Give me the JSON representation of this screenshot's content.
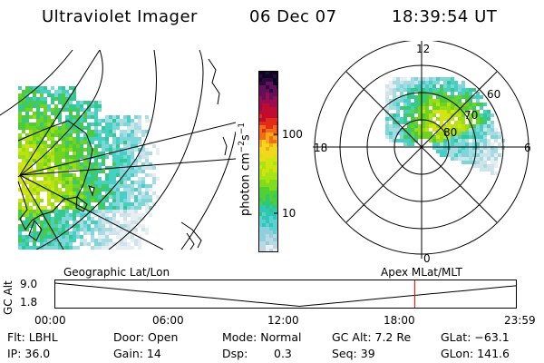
{
  "header": {
    "instrument": "Ultraviolet Imager",
    "date": "06 Dec 07",
    "time": "18:39:54 UT"
  },
  "colorbar": {
    "label_prefix": "photon cm",
    "label_exp1": "−2",
    "label_mid": "s",
    "label_exp2": "−1",
    "ticks": [
      "100",
      "10"
    ],
    "colors": [
      "#e8eef2",
      "#bcd8e0",
      "#8fd0dc",
      "#5ccfd0",
      "#2ec7b8",
      "#30c878",
      "#52d030",
      "#80dc1c",
      "#a8e414",
      "#d0e410",
      "#f0d81c",
      "#f8a818",
      "#f06c18",
      "#e02c18",
      "#c00c30",
      "#980c50",
      "#641058",
      "#2c0840",
      "#0c0420"
    ],
    "color_texture": "speckled-ramp"
  },
  "polar": {
    "hour_labels": [
      "12",
      "18",
      "6",
      "0"
    ],
    "lat_labels": [
      "60",
      "70",
      "80"
    ]
  },
  "timeline": {
    "axis_label": "GC Alt",
    "left_title": "Geographic Lat/Lon",
    "right_title": "Apex MLat/MLT",
    "ytick_top": "9.0",
    "ytick_bottom": "1.8",
    "xticks": [
      "00:00",
      "06:00",
      "12:00",
      "18:00",
      "23:59"
    ],
    "marker_fraction": 0.7805,
    "marker_color": "#e02020",
    "curve_color": "#000000"
  },
  "status": {
    "row1": {
      "flt": "Flt: LBHL",
      "door": "Door: Open",
      "mode": "Mode: Normal",
      "gcalt": "GC Alt: 7.2 Re",
      "glat": "GLat: −63.1"
    },
    "row2": {
      "ip": "IP: 36.0",
      "gain": "Gain: 14",
      "dsp_label": "Dsp:",
      "dsp_value": "0.3",
      "seq": "Seq: 39",
      "glon": "GLon: 141.6"
    }
  }
}
